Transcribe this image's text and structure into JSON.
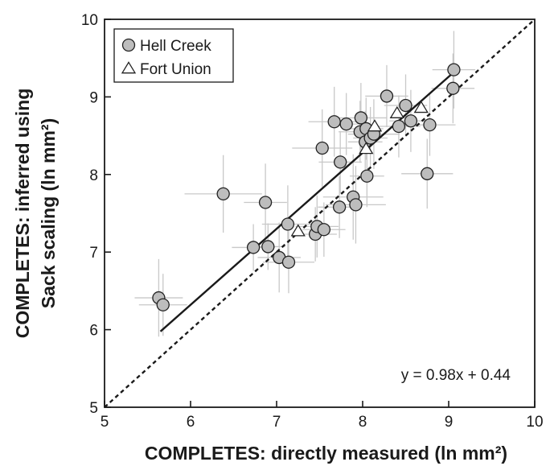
{
  "chart_data": {
    "type": "scatter",
    "xlabel": "COMPLETES: directly measured (ln mm²)",
    "ylabel_lines": [
      "COMPLETES: inferred using",
      "Sack scaling (ln mm²)"
    ],
    "xlim": [
      5,
      10
    ],
    "ylim": [
      5,
      10
    ],
    "xticks": [
      "5",
      "6",
      "7",
      "8",
      "9",
      "10"
    ],
    "yticks": [
      "5",
      "6",
      "7",
      "8",
      "9",
      "10"
    ],
    "grid": false,
    "legend_position": "top-left",
    "equation": "y = 0.98x + 0.44",
    "fit_line": {
      "slope": 0.98,
      "intercept": 0.44,
      "x_range": [
        5.65,
        9.05
      ]
    },
    "identity_line": {
      "x_range": [
        5,
        10
      ]
    },
    "colors": {
      "hell_creek_fill": "#bdbdbd",
      "marker_edge": "#222222",
      "error_bar": "#c8c8c8",
      "line": "#1a1a1a"
    },
    "series": [
      {
        "name": "Hell Creek",
        "marker": "circle",
        "points": [
          {
            "x": 5.63,
            "y": 6.41,
            "xerr": 0.28,
            "yerr": 0.5
          },
          {
            "x": 5.68,
            "y": 6.32,
            "xerr": 0.28,
            "yerr": 0.4
          },
          {
            "x": 6.38,
            "y": 7.75,
            "xerr": 0.45,
            "yerr": 0.5
          },
          {
            "x": 6.73,
            "y": 7.06,
            "xerr": 0.25,
            "yerr": 0.3
          },
          {
            "x": 6.87,
            "y": 7.64,
            "xerr": 0.25,
            "yerr": 0.5
          },
          {
            "x": 6.9,
            "y": 7.07,
            "xerr": 0.2,
            "yerr": 0.3
          },
          {
            "x": 7.03,
            "y": 6.93,
            "xerr": 0.25,
            "yerr": 0.45
          },
          {
            "x": 7.13,
            "y": 7.36,
            "xerr": 0.3,
            "yerr": 0.5
          },
          {
            "x": 7.14,
            "y": 6.87,
            "xerr": 0.3,
            "yerr": 0.4
          },
          {
            "x": 7.45,
            "y": 7.23,
            "xerr": 0.25,
            "yerr": 0.35
          },
          {
            "x": 7.47,
            "y": 7.33,
            "xerr": 0.25,
            "yerr": 0.4
          },
          {
            "x": 7.55,
            "y": 7.29,
            "xerr": 0.25,
            "yerr": 0.35
          },
          {
            "x": 7.53,
            "y": 8.34,
            "xerr": 0.35,
            "yerr": 0.5
          },
          {
            "x": 7.67,
            "y": 8.68,
            "xerr": 0.3,
            "yerr": 0.45
          },
          {
            "x": 7.73,
            "y": 7.58,
            "xerr": 0.25,
            "yerr": 0.4
          },
          {
            "x": 7.74,
            "y": 8.16,
            "xerr": 0.25,
            "yerr": 0.4
          },
          {
            "x": 7.81,
            "y": 8.65,
            "xerr": 0.2,
            "yerr": 0.4
          },
          {
            "x": 7.89,
            "y": 7.71,
            "xerr": 0.35,
            "yerr": 0.55
          },
          {
            "x": 7.92,
            "y": 7.61,
            "xerr": 0.35,
            "yerr": 0.5
          },
          {
            "x": 7.97,
            "y": 8.55,
            "xerr": 0.25,
            "yerr": 0.4
          },
          {
            "x": 7.98,
            "y": 8.73,
            "xerr": 0.3,
            "yerr": 0.45
          },
          {
            "x": 8.03,
            "y": 8.42,
            "xerr": 0.2,
            "yerr": 0.4
          },
          {
            "x": 8.04,
            "y": 8.59,
            "xerr": 0.2,
            "yerr": 0.4
          },
          {
            "x": 8.05,
            "y": 7.98,
            "xerr": 0.2,
            "yerr": 0.4
          },
          {
            "x": 8.09,
            "y": 8.47,
            "xerr": 0.2,
            "yerr": 0.4
          },
          {
            "x": 8.13,
            "y": 8.52,
            "xerr": 0.3,
            "yerr": 0.45
          },
          {
            "x": 8.28,
            "y": 9.01,
            "xerr": 0.25,
            "yerr": 0.4
          },
          {
            "x": 8.42,
            "y": 8.62,
            "xerr": 0.25,
            "yerr": 0.4
          },
          {
            "x": 8.5,
            "y": 8.89,
            "xerr": 0.25,
            "yerr": 0.4
          },
          {
            "x": 8.56,
            "y": 8.69,
            "xerr": 0.25,
            "yerr": 0.4
          },
          {
            "x": 8.75,
            "y": 8.01,
            "xerr": 0.3,
            "yerr": 0.45
          },
          {
            "x": 8.78,
            "y": 8.64,
            "xerr": 0.3,
            "yerr": 0.4
          },
          {
            "x": 9.05,
            "y": 9.11,
            "xerr": 0.25,
            "yerr": 0.45
          },
          {
            "x": 9.06,
            "y": 9.35,
            "xerr": 0.25,
            "yerr": 0.5
          }
        ]
      },
      {
        "name": "Fort Union",
        "marker": "triangle",
        "points": [
          {
            "x": 7.25,
            "y": 7.27
          },
          {
            "x": 8.04,
            "y": 8.33
          },
          {
            "x": 8.14,
            "y": 8.62
          },
          {
            "x": 8.4,
            "y": 8.79
          },
          {
            "x": 8.68,
            "y": 8.86
          }
        ]
      }
    ]
  }
}
